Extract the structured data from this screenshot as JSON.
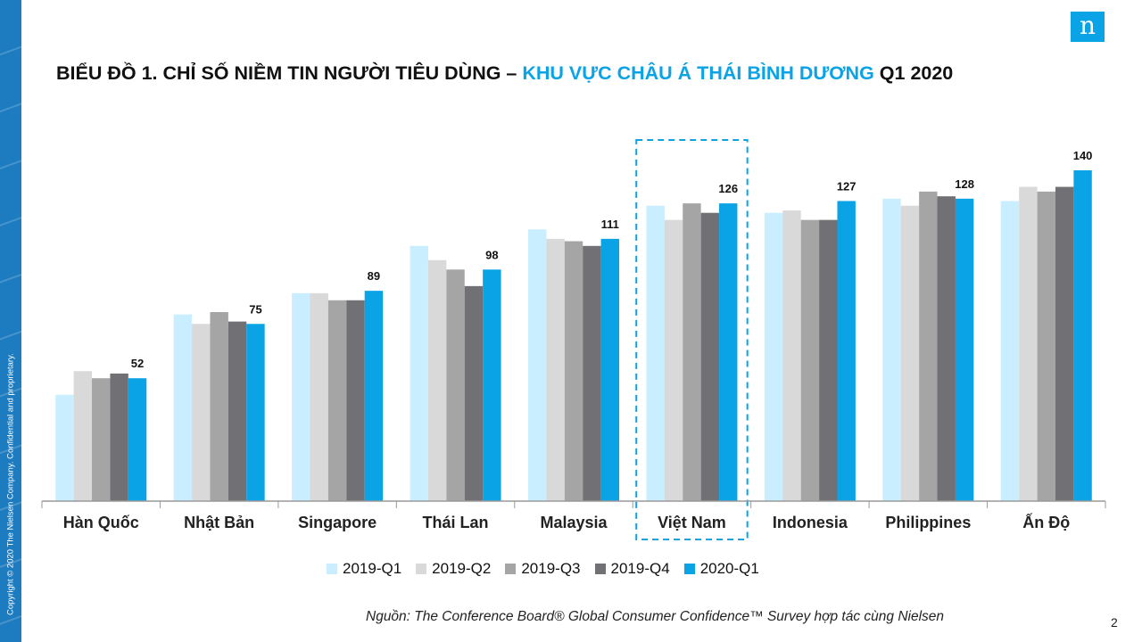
{
  "copyright": "Copyright © 2020 The Nielsen Company. Confidential and proprietary.",
  "logo": {
    "letter": "n"
  },
  "title": {
    "prefix": "BIỂU ĐỒ 1. CHỈ SỐ NIỀM TIN NGƯỜI TIÊU DÙNG – ",
    "highlight": "KHU VỰC CHÂU Á THÁI BÌNH DƯƠNG",
    "suffix": " Q1 2020"
  },
  "colors": {
    "accent": "#0aa3e6",
    "series": [
      "#c9eeff",
      "#d9d9d9",
      "#a5a5a5",
      "#707075",
      "#0aa3e6"
    ]
  },
  "chart_data": {
    "type": "bar",
    "categories": [
      "Hàn Quốc",
      "Nhật Bản",
      "Singapore",
      "Thái Lan",
      "Malaysia",
      "Việt Nam",
      "Indonesia",
      "Philippines",
      "Ấn Độ"
    ],
    "series": [
      {
        "name": "2019-Q1",
        "values": [
          45,
          79,
          88,
          108,
          115,
          125,
          122,
          128,
          127
        ]
      },
      {
        "name": "2019-Q2",
        "values": [
          55,
          75,
          88,
          102,
          111,
          119,
          123,
          125,
          133
        ]
      },
      {
        "name": "2019-Q3",
        "values": [
          52,
          80,
          85,
          98,
          110,
          126,
          119,
          131,
          131
        ]
      },
      {
        "name": "2019-Q4",
        "values": [
          54,
          76,
          85,
          91,
          108,
          122,
          119,
          129,
          133
        ]
      },
      {
        "name": "2020-Q1",
        "values": [
          52,
          75,
          89,
          98,
          111,
          126,
          127,
          128,
          140
        ]
      }
    ],
    "data_labels": [
      "52",
      "75",
      "89",
      "98",
      "111",
      "126",
      "127",
      "128",
      "140"
    ],
    "highlighted_category": "Việt Nam",
    "ylim": [
      0,
      150
    ],
    "legend_position": "bottom",
    "grid": false
  },
  "source": "Nguồn: The Conference Board® Global Consumer Confidence™ Survey hợp tác cùng Nielsen",
  "page_number": "2"
}
